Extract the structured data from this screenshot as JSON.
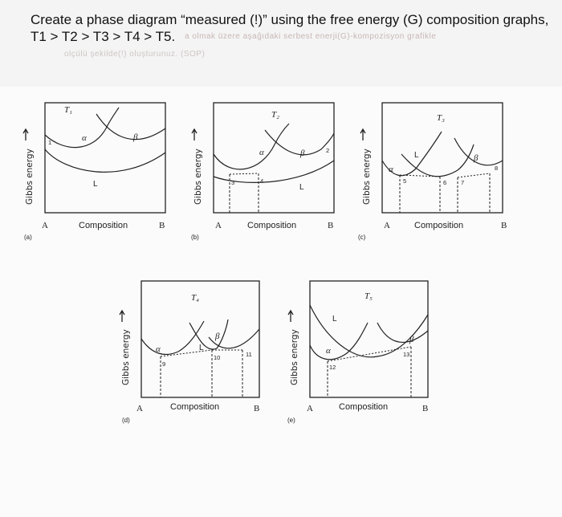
{
  "prompt": {
    "line1": "Create a phase diagram “measured (!)” using the free energy (G) composition graphs,",
    "line2": "T1 > T2 > T3 > T4 > T5.",
    "ghost1": "a olmak üzere aşağıdaki serbest enerji(G)-kompozisyon grafikle",
    "ghost2": "olçülü şekilde(!) oluşturunuz. (SOP)"
  },
  "common": {
    "ylabel": "Gibbs energy",
    "xlabel": "Composition",
    "left_label": "A",
    "right_label": "B",
    "alpha": "α",
    "beta": "β",
    "liquid": "L"
  },
  "panels": [
    {
      "id": "a",
      "caption": "(a)",
      "temp": "T₁",
      "points": [
        "1"
      ]
    },
    {
      "id": "b",
      "caption": "(b)",
      "temp": "T₂",
      "points": [
        "2",
        "3",
        "4"
      ]
    },
    {
      "id": "c",
      "caption": "(c)",
      "temp": "T₃",
      "points": [
        "5",
        "6",
        "7",
        "8"
      ]
    },
    {
      "id": "d",
      "caption": "(d)",
      "temp": "T₄",
      "points": [
        "9",
        "10",
        "11"
      ]
    },
    {
      "id": "e",
      "caption": "(e)",
      "temp": "T₅",
      "points": [
        "12",
        "13"
      ]
    }
  ]
}
